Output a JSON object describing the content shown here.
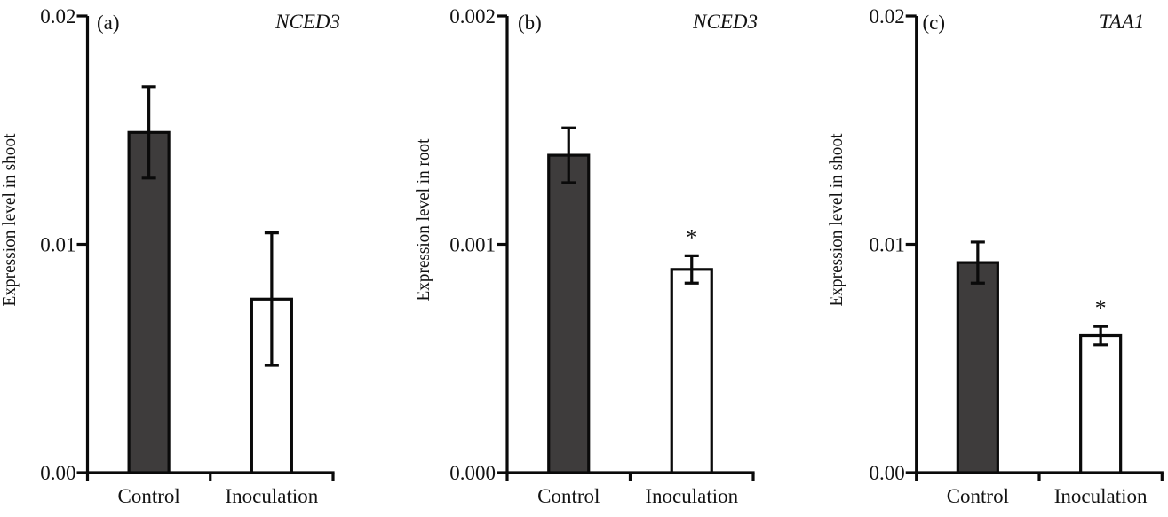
{
  "figure": {
    "background_color": "#ffffff",
    "axis_color": "#0a0a0a",
    "text_color": "#131313",
    "bar_fill_dark": "#3e3c3c",
    "bar_fill_white": "#ffffff",
    "bar_border_color": "#0a0a0a",
    "significance_marker": "*"
  },
  "chart_data": [
    {
      "type": "bar",
      "panel_label": "(a)",
      "title": "NCED3",
      "title_italic": true,
      "ylabel": "Expression level in shoot",
      "xlabel": "",
      "categories": [
        "Control",
        "Inoculation"
      ],
      "series": [
        {
          "name": "Control",
          "value": 0.0149,
          "error": 0.002,
          "fill": "dark",
          "significant": false
        },
        {
          "name": "Inoculation",
          "value": 0.0076,
          "error": 0.0029,
          "fill": "white",
          "significant": false
        }
      ],
      "ylim": [
        0,
        0.02
      ],
      "yticks": [
        {
          "label": "0.00",
          "value": 0
        },
        {
          "label": "0.01",
          "value": 0.01
        },
        {
          "label": "0.02",
          "value": 0.02
        }
      ],
      "grid": false,
      "legend": "none"
    },
    {
      "type": "bar",
      "panel_label": "(b)",
      "title": "NCED3",
      "title_italic": true,
      "ylabel": "Expression level in root",
      "xlabel": "",
      "categories": [
        "Control",
        "Inoculation"
      ],
      "series": [
        {
          "name": "Control",
          "value": 0.00139,
          "error": 0.00012,
          "fill": "dark",
          "significant": false
        },
        {
          "name": "Inoculation",
          "value": 0.00089,
          "error": 6e-05,
          "fill": "white",
          "significant": true
        }
      ],
      "ylim": [
        0,
        0.002
      ],
      "yticks": [
        {
          "label": "0.000",
          "value": 0
        },
        {
          "label": "0.001",
          "value": 0.001
        },
        {
          "label": "0.002",
          "value": 0.002
        }
      ],
      "grid": false,
      "legend": "none"
    },
    {
      "type": "bar",
      "panel_label": "(c)",
      "title": "TAA1",
      "title_italic": true,
      "ylabel": "Expression level in shoot",
      "xlabel": "",
      "categories": [
        "Control",
        "Inoculation"
      ],
      "series": [
        {
          "name": "Control",
          "value": 0.0092,
          "error": 0.0009,
          "fill": "dark",
          "significant": false
        },
        {
          "name": "Inoculation",
          "value": 0.006,
          "error": 0.0004,
          "fill": "white",
          "significant": true
        }
      ],
      "ylim": [
        0,
        0.02
      ],
      "yticks": [
        {
          "label": "0.00",
          "value": 0
        },
        {
          "label": "0.01",
          "value": 0.01
        },
        {
          "label": "0.02",
          "value": 0.02
        }
      ],
      "grid": false,
      "legend": "none"
    }
  ]
}
